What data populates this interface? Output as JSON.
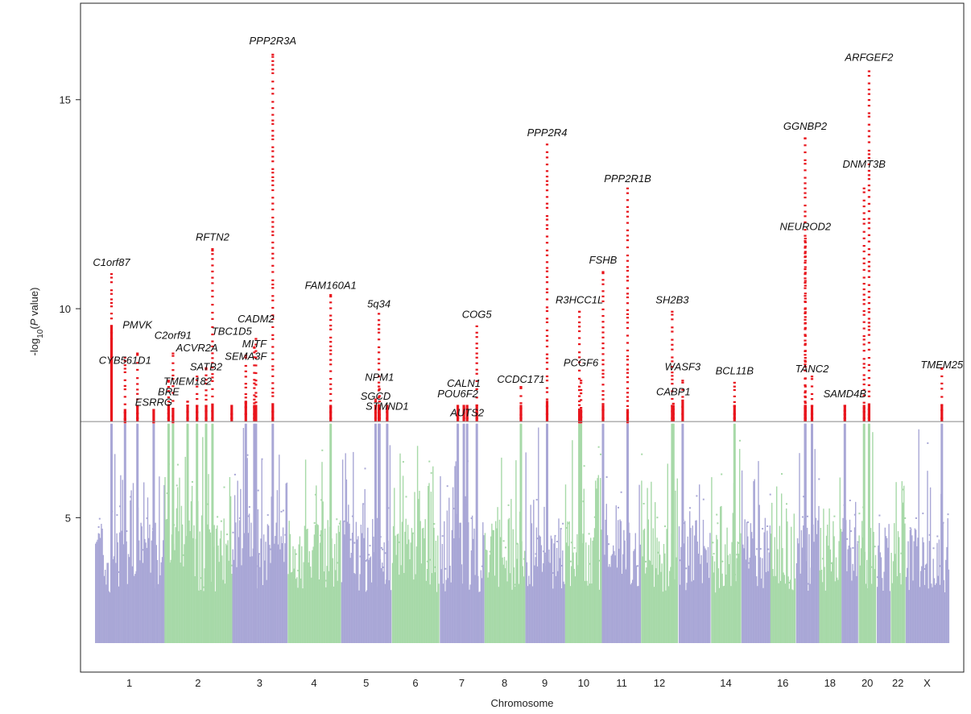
{
  "chart_data": {
    "type": "scatter",
    "subtype": "manhattan",
    "xlabel": "Chromosome",
    "ylabel_parts": [
      "-log",
      "10",
      "(",
      "P",
      " value)"
    ],
    "ylim": [
      2.0,
      17.0
    ],
    "yticks": [
      5,
      10,
      15
    ],
    "grid": false,
    "significance_threshold": 7.3,
    "colors": {
      "odd_chromosome": "#a9a7d6",
      "even_chromosome": "#a7d9a8",
      "significant": "#e8141c",
      "threshold_line": "#888888",
      "axis": "#222222"
    },
    "chromosomes": [
      {
        "name": "1",
        "label": "1",
        "start": 0,
        "end": 249,
        "peak": 7.1
      },
      {
        "name": "2",
        "label": "2",
        "start": 252,
        "end": 495,
        "peak": 7.2
      },
      {
        "name": "3",
        "label": "3",
        "start": 498,
        "end": 696,
        "peak": 7.2
      },
      {
        "name": "4",
        "label": "4",
        "start": 699,
        "end": 890,
        "peak": 7.1
      },
      {
        "name": "5",
        "label": "5",
        "start": 893,
        "end": 1074,
        "peak": 7.2
      },
      {
        "name": "6",
        "label": "6",
        "start": 1077,
        "end": 1248,
        "peak": 7.1
      },
      {
        "name": "7",
        "label": "7",
        "start": 1251,
        "end": 1410,
        "peak": 7.2
      },
      {
        "name": "8",
        "label": "8",
        "start": 1413,
        "end": 1558,
        "peak": 6.8
      },
      {
        "name": "9",
        "label": "9",
        "start": 1561,
        "end": 1702,
        "peak": 7.2
      },
      {
        "name": "10",
        "label": "10",
        "start": 1705,
        "end": 1840,
        "peak": 7.2
      },
      {
        "name": "11",
        "label": "11",
        "start": 1843,
        "end": 1978,
        "peak": 7.2
      },
      {
        "name": "12",
        "label": "12",
        "start": 1981,
        "end": 2114,
        "peak": 7.1
      },
      {
        "name": "13",
        "label": "",
        "start": 2117,
        "end": 2232,
        "peak": 6.9
      },
      {
        "name": "14",
        "label": "14",
        "start": 2235,
        "end": 2342,
        "peak": 6.9
      },
      {
        "name": "15",
        "label": "",
        "start": 2345,
        "end": 2447,
        "peak": 6.8
      },
      {
        "name": "16",
        "label": "16",
        "start": 2450,
        "end": 2540,
        "peak": 7.0
      },
      {
        "name": "17",
        "label": "",
        "start": 2543,
        "end": 2624,
        "peak": 7.2
      },
      {
        "name": "18",
        "label": "18",
        "start": 2627,
        "end": 2705,
        "peak": 6.6
      },
      {
        "name": "19",
        "label": "",
        "start": 2708,
        "end": 2767,
        "peak": 6.6
      },
      {
        "name": "20",
        "label": "20",
        "start": 2770,
        "end": 2833,
        "peak": 7.2
      },
      {
        "name": "21",
        "label": "",
        "start": 2836,
        "end": 2884,
        "peak": 6.8
      },
      {
        "name": "22",
        "label": "22",
        "start": 2887,
        "end": 2938,
        "peak": 6.0
      },
      {
        "name": "X",
        "label": "X",
        "start": 2941,
        "end": 3096,
        "peak": 7.2
      }
    ],
    "loci": [
      {
        "gene": "C1orf87",
        "pos": 60,
        "p": 10.85,
        "low": 9.3,
        "label_y": 10.95
      },
      {
        "gene": "CYB561D1",
        "pos": 109,
        "p": 8.85,
        "low": 7.3,
        "label_y": 8.6
      },
      {
        "gene": "PMVK",
        "pos": 154,
        "p": 8.95,
        "low": 7.4,
        "label_y": 9.45
      },
      {
        "gene": "ESRRG",
        "pos": 213,
        "p": 7.3,
        "low": 7.3,
        "label_y": 7.6
      },
      {
        "gene": "BRE",
        "pos": 267,
        "p": 8.3,
        "low": 7.4,
        "label_y": 7.85
      },
      {
        "gene": "C2orf91",
        "pos": 283,
        "p": 8.95,
        "low": 7.3,
        "label_y": 9.2
      },
      {
        "gene": "TMEM182",
        "pos": 336,
        "p": 7.8,
        "low": 7.4,
        "label_y": 8.1
      },
      {
        "gene": "ACVR2A",
        "pos": 370,
        "p": 8.4,
        "low": 7.4,
        "label_y": 8.9
      },
      {
        "gene": "SATB2",
        "pos": 403,
        "p": 8.6,
        "low": 7.4,
        "label_y": 8.45
      },
      {
        "gene": "RFTN2",
        "pos": 426,
        "p": 11.45,
        "low": 7.4,
        "label_y": 11.55
      },
      {
        "gene": "TBC1D5",
        "pos": 496,
        "p": 7.5,
        "low": 7.4,
        "label_y": 9.3
      },
      {
        "gene": "SEMA3F",
        "pos": 547,
        "p": 8.9,
        "low": 7.5,
        "label_y": 8.7
      },
      {
        "gene": "MITF",
        "pos": 578,
        "p": 9.1,
        "low": 7.4,
        "label_y": 9.0
      },
      {
        "gene": "CADM2",
        "pos": 584,
        "p": 9.3,
        "low": 7.4,
        "label_y": 9.6
      },
      {
        "gene": "PPP2R3A",
        "pos": 645,
        "p": 16.1,
        "low": 7.4,
        "label_y": 16.25
      },
      {
        "gene": "FAM160A1",
        "pos": 855,
        "p": 10.35,
        "low": 7.4,
        "label_y": 10.4
      },
      {
        "gene": "5q34",
        "pos": 1030,
        "p": 9.9,
        "low": 7.4,
        "label_y": 9.95
      },
      {
        "gene": "NPM1",
        "pos": 1032,
        "p": 8.1,
        "low": 7.4,
        "label_y": 8.2
      },
      {
        "gene": "SGCD",
        "pos": 1018,
        "p": 7.85,
        "low": 7.4,
        "label_y": 7.75
      },
      {
        "gene": "STMND1",
        "pos": 1060,
        "p": 7.55,
        "low": 7.4,
        "label_y": 7.5
      },
      {
        "gene": "POU6F2",
        "pos": 1316,
        "p": 7.6,
        "low": 7.4,
        "label_y": 7.8
      },
      {
        "gene": "CALN1",
        "pos": 1338,
        "p": 7.65,
        "low": 7.4,
        "label_y": 8.05
      },
      {
        "gene": "AUTS2",
        "pos": 1350,
        "p": 7.55,
        "low": 7.4,
        "label_y": 7.35
      },
      {
        "gene": "COG5",
        "pos": 1385,
        "p": 9.6,
        "low": 7.4,
        "label_y": 9.7
      },
      {
        "gene": "CCDC171",
        "pos": 1545,
        "p": 8.15,
        "low": 7.4,
        "label_y": 8.15
      },
      {
        "gene": "PPP2R4",
        "pos": 1640,
        "p": 13.95,
        "low": 7.5,
        "label_y": 14.05
      },
      {
        "gene": "R3HCC1L",
        "pos": 1757,
        "p": 9.95,
        "low": 7.3,
        "label_y": 10.05
      },
      {
        "gene": "PCGF6",
        "pos": 1763,
        "p": 8.3,
        "low": 7.3,
        "label_y": 8.55
      },
      {
        "gene": "FSHB",
        "pos": 1843,
        "p": 10.9,
        "low": 7.4,
        "label_y": 11.0
      },
      {
        "gene": "PPP2R1B",
        "pos": 1932,
        "p": 12.9,
        "low": 7.3,
        "label_y": 12.95
      },
      {
        "gene": "SH2B3",
        "pos": 2094,
        "p": 9.95,
        "low": 7.4,
        "label_y": 10.05
      },
      {
        "gene": "WASF3",
        "pos": 2132,
        "p": 8.3,
        "low": 7.5,
        "label_y": 8.45
      },
      {
        "gene": "CABP1",
        "pos": 2098,
        "p": 7.75,
        "low": 7.4,
        "label_y": 7.85
      },
      {
        "gene": "BCL11B",
        "pos": 2320,
        "p": 8.25,
        "low": 7.4,
        "label_y": 8.35
      },
      {
        "gene": "GGNBP2",
        "pos": 2576,
        "p": 14.1,
        "low": 7.4,
        "label_y": 14.2
      },
      {
        "gene": "NEURODE2",
        "pos": 2577,
        "p": 11.7,
        "low": 7.4,
        "label_y": 11.8,
        "display": "NEUROD2"
      },
      {
        "gene": "TANC2",
        "pos": 2601,
        "p": 8.4,
        "low": 7.4,
        "label_y": 8.4
      },
      {
        "gene": "SAMD4B",
        "pos": 2720,
        "p": 7.7,
        "low": 7.4,
        "label_y": 7.8
      },
      {
        "gene": "DNMT3B",
        "pos": 2790,
        "p": 12.9,
        "low": 7.4,
        "label_y": 13.3
      },
      {
        "gene": "ARFGEF2",
        "pos": 2808,
        "p": 15.7,
        "low": 7.4,
        "label_y": 15.85
      },
      {
        "gene": "TMEM25",
        "pos": 3072,
        "p": 8.6,
        "low": 7.4,
        "label_y": 8.5
      }
    ]
  }
}
